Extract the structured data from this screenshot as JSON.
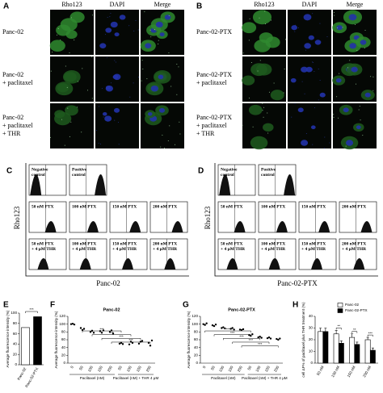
{
  "panel_a": {
    "label": "A",
    "columns": [
      "Rho123",
      "DAPI",
      "Merge"
    ],
    "rows": [
      [
        "Panc-02"
      ],
      [
        "Panc-02",
        "+ paclitaxel"
      ],
      [
        "Panc-02",
        "+ paclitaxel",
        "+ THR"
      ]
    ]
  },
  "panel_b": {
    "label": "B",
    "columns": [
      "Rho123",
      "DAPI",
      "Merge"
    ],
    "rows": [
      [
        "Panc-02-PTX"
      ],
      [
        "Panc-02-PTX",
        "+ paclitaxel"
      ],
      [
        "Panc-02-PTX",
        "+ paclitaxel",
        "+ THR"
      ]
    ]
  },
  "panel_c": {
    "label": "C",
    "y_label": "Rho123",
    "x_label": "Panc-02",
    "histograms": [
      [
        [
          "Negative",
          "control"
        ],
        [
          "Positive",
          "control"
        ]
      ],
      [
        [
          "50 nM PTX"
        ],
        [
          "100 nM PTX"
        ],
        [
          "150 nM PTX"
        ],
        [
          "200 nM PTX"
        ]
      ],
      [
        [
          "50 nM PTX",
          "+ 4 μM THR"
        ],
        [
          "100 nM PTX",
          "+ 4 μM THR"
        ],
        [
          "150 nM PTX",
          "+ 4 μM THR"
        ],
        [
          "200 nM PTX",
          "+ 4 μM THR"
        ]
      ]
    ]
  },
  "panel_d": {
    "label": "D",
    "y_label": "Rho123",
    "x_label": "Panc-02-PTX",
    "histograms": [
      [
        [
          "Negative",
          "control"
        ],
        [
          "Positive",
          "control"
        ]
      ],
      [
        [
          "50 nM PTX"
        ],
        [
          "100 nM PTX"
        ],
        [
          "150 nM PTX"
        ],
        [
          "200 nM PTX"
        ]
      ],
      [
        [
          "50 nM PTX",
          "+ 4 μM THR"
        ],
        [
          "100 nM PTX",
          "+ 4 μM THR"
        ],
        [
          "150 nM PTX",
          "+ 4 μM THR"
        ],
        [
          "200 nM PTX",
          "+ 4 μM THR"
        ]
      ]
    ]
  },
  "chart_data": [
    {
      "type": "bar",
      "label": "E",
      "y_label": "Average fluorescence intensity (%)",
      "categories": [
        "Panc-02",
        "Panc-02-PTX"
      ],
      "values": [
        72,
        93
      ],
      "colors": [
        "#ffffff",
        "#000000"
      ],
      "ylim": [
        0,
        100
      ],
      "yticks": [
        0,
        20,
        40,
        60,
        80,
        100
      ],
      "significance": [
        "***"
      ]
    },
    {
      "type": "dot",
      "label": "F",
      "title": "Panc-02",
      "y_label": "Average fluorescence intensity (%)",
      "categories": [
        "0",
        "50",
        "100",
        "150",
        "200",
        "50",
        "100",
        "150",
        "200"
      ],
      "groups": [
        "Paclitaxel (nM)",
        "Paclitaxel (nM) + THR 4 μM"
      ],
      "values": [
        [
          100,
          101,
          99
        ],
        [
          90,
          85,
          88
        ],
        [
          80,
          83,
          78
        ],
        [
          82,
          78,
          84
        ],
        [
          80,
          84,
          76
        ],
        [
          50,
          52,
          49
        ],
        [
          48,
          55,
          52
        ],
        [
          50,
          55,
          57
        ],
        [
          52,
          45,
          58
        ]
      ],
      "ylim": [
        0,
        120
      ],
      "yticks": [
        0,
        20,
        40,
        60,
        80,
        100,
        120
      ],
      "significance": [
        "***",
        "***",
        "***",
        "***"
      ]
    },
    {
      "type": "dot",
      "label": "G",
      "title": "Panc-02-PTX",
      "y_label": "Average fluorescence intensity (%)",
      "categories": [
        "0",
        "50",
        "100",
        "150",
        "200",
        "50",
        "100",
        "150",
        "200"
      ],
      "groups": [
        "Paclitaxel (nM)",
        "Paclitaxel (nM) + THR 4 μM"
      ],
      "values": [
        [
          100,
          98,
          102
        ],
        [
          97,
          95,
          99
        ],
        [
          90,
          92,
          89
        ],
        [
          88,
          90,
          86
        ],
        [
          86,
          85,
          87
        ],
        [
          72,
          70,
          74
        ],
        [
          66,
          68,
          65
        ],
        [
          64,
          66,
          63
        ],
        [
          62,
          60,
          63
        ]
      ],
      "ylim": [
        0,
        120
      ],
      "yticks": [
        0,
        20,
        40,
        60,
        80,
        100,
        120
      ],
      "significance": [
        "***",
        "***",
        "***",
        "***",
        "***"
      ]
    },
    {
      "type": "grouped_bar",
      "label": "H",
      "y_label": "cell ΔF% of paclitaxel plus THR treatment (%)",
      "categories": [
        "50 nM",
        "100 nM",
        "150 nM",
        "200 nM"
      ],
      "series": [
        {
          "name": "Panc-02",
          "color": "#ffffff",
          "values": [
            27,
            25,
            22,
            20
          ],
          "errors": [
            3,
            3,
            3,
            2
          ]
        },
        {
          "name": "Panc-02-PTX",
          "color": "#000000",
          "values": [
            27,
            17,
            16,
            11
          ],
          "errors": [
            3,
            2,
            2,
            2
          ]
        }
      ],
      "ylim": [
        0,
        40
      ],
      "yticks": [
        0,
        10,
        20,
        30,
        40
      ],
      "significance": [
        null,
        "**",
        "**",
        "***"
      ]
    }
  ]
}
